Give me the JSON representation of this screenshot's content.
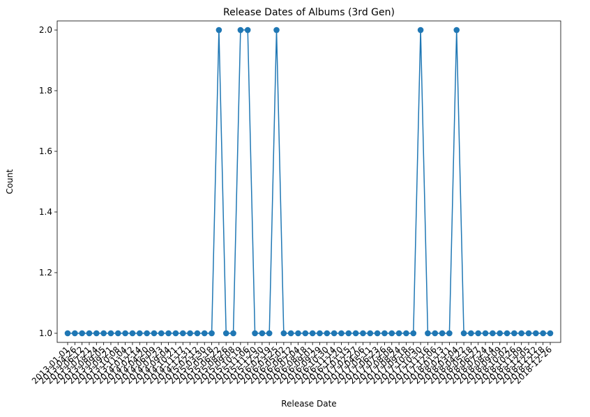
{
  "chart_data": {
    "type": "line",
    "title": "Release Dates of Albums (3rd Gen)",
    "xlabel": "Release Date",
    "ylabel": "Count",
    "ylim": [
      0.97,
      2.03
    ],
    "yticks": [
      "1.0",
      "1.2",
      "1.4",
      "1.6",
      "1.8",
      "2.0"
    ],
    "grid": false,
    "marker": "circle",
    "line_color": "#1f77b4",
    "categories": [
      "2013-01-01",
      "2013-04-26",
      "2013-06-12",
      "2013-07-21",
      "2013-08-24",
      "2013-09-05",
      "2013-09-21",
      "2013-10-08",
      "2013-11-04",
      "2014-01-12",
      "2014-02-14",
      "2014-04-20",
      "2014-06-09",
      "2014-07-23",
      "2014-09-04",
      "2014-10-21",
      "2014-11-17",
      "2014-12-31",
      "2015-02-12",
      "2015-03-30",
      "2015-05-18",
      "2015-06-22",
      "2015-08-26",
      "2015-09-08",
      "2015-10-19",
      "2015-11-06",
      "2015-11-20",
      "2015-12-30",
      "2016-02-19",
      "2016-03-25",
      "2016-05-02",
      "2016-06-12",
      "2016-07-04",
      "2016-08-18",
      "2016-09-01",
      "2016-09-29",
      "2016-10-30",
      "2016-11-14",
      "2016-12-20",
      "2017-01-15",
      "2017-02-27",
      "2017-04-06",
      "2017-05-11",
      "2017-06-23",
      "2017-07-26",
      "2017-08-08",
      "2017-08-24",
      "2017-09-18",
      "2017-10-05",
      "2017-10-30",
      "2017-11-16",
      "2017-12-06",
      "2018-01-13",
      "2018-02-11",
      "2018-03-04",
      "2018-04-22",
      "2018-05-18",
      "2018-06-27",
      "2018-07-24",
      "2018-08-14",
      "2018-09-09",
      "2018-10-02",
      "2018-10-26",
      "2018-11-09",
      "2018-12-05",
      "2018-12-12",
      "2018-12-18",
      "2018-12-26"
    ],
    "values": [
      1,
      1,
      1,
      1,
      1,
      1,
      1,
      1,
      1,
      1,
      1,
      1,
      1,
      1,
      1,
      1,
      1,
      1,
      1,
      1,
      1,
      2,
      1,
      1,
      2,
      2,
      1,
      1,
      1,
      2,
      1,
      1,
      1,
      1,
      1,
      1,
      1,
      1,
      1,
      1,
      1,
      1,
      1,
      1,
      1,
      1,
      1,
      1,
      1,
      2,
      1,
      1,
      1,
      1,
      2,
      1,
      1,
      1,
      1,
      1,
      1,
      1,
      1,
      1,
      1,
      1,
      1,
      1
    ]
  }
}
